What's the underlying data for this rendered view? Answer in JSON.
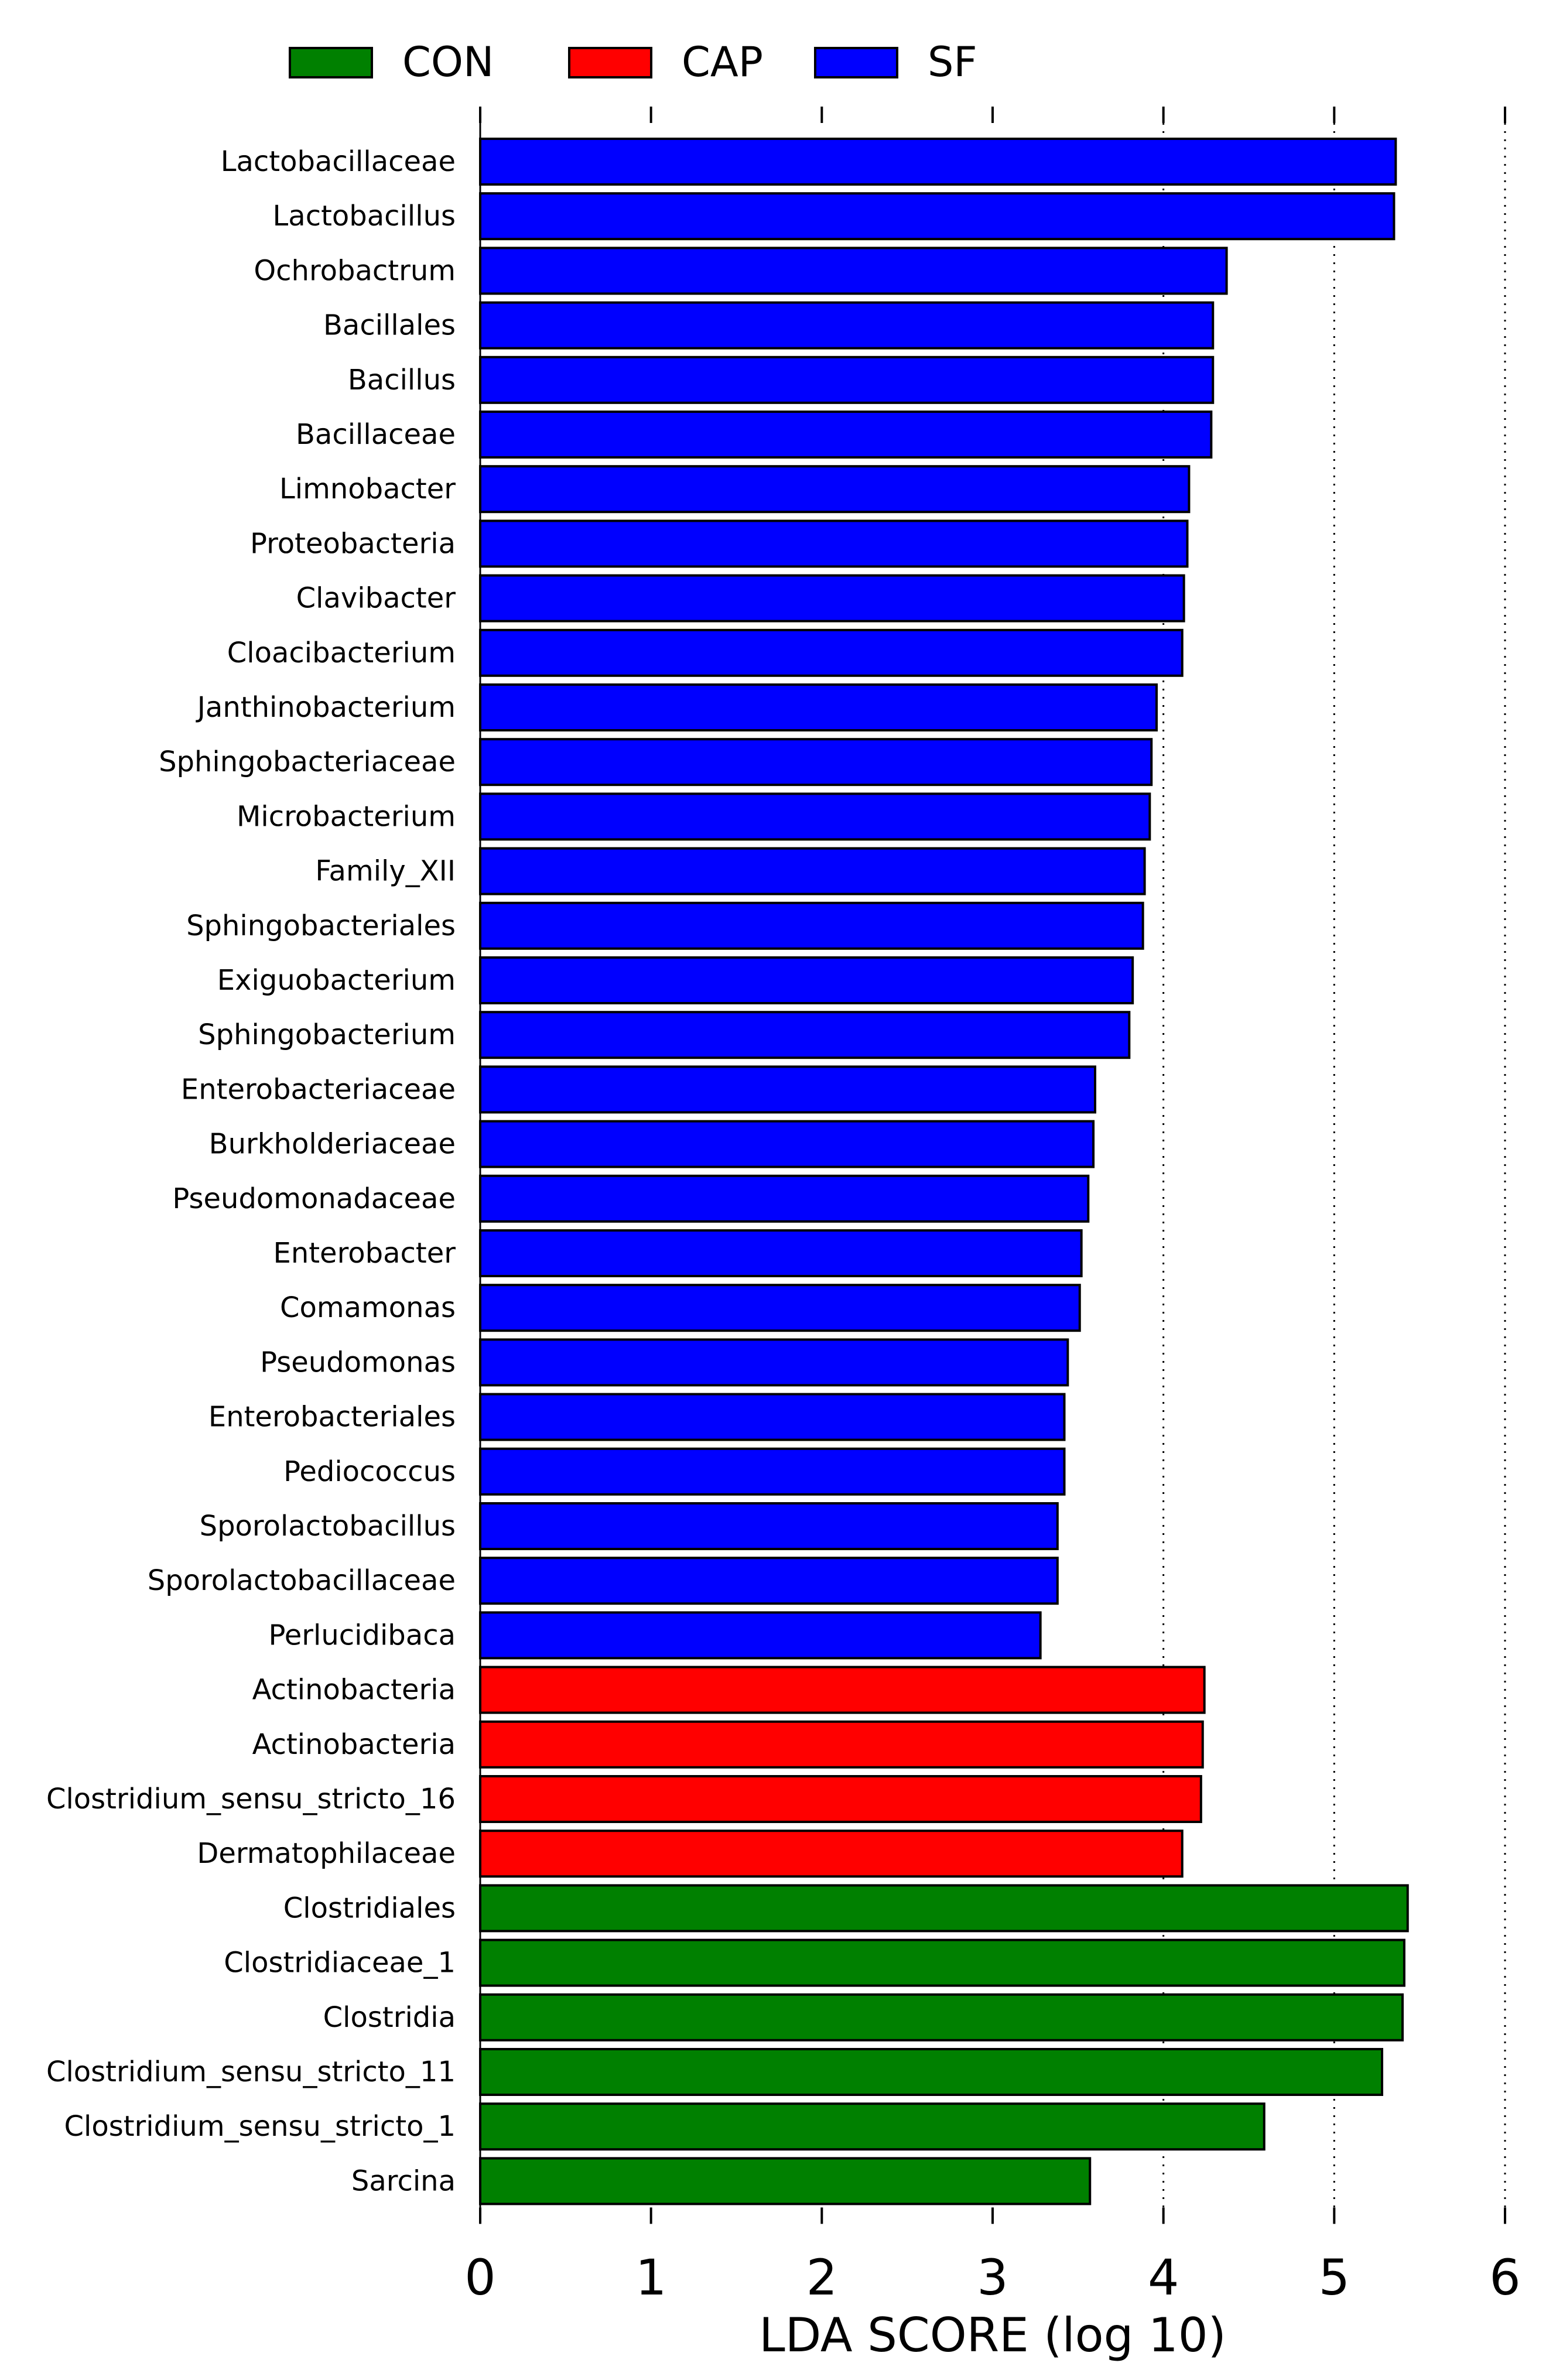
{
  "chart_data": {
    "type": "bar",
    "orientation": "horizontal",
    "title": "",
    "xlabel": "LDA SCORE (log 10)",
    "ylabel": "",
    "xlim": [
      0,
      6
    ],
    "xticks": [
      "0",
      "1",
      "2",
      "3",
      "4",
      "5",
      "6"
    ],
    "grid": "vertical dotted lines at 4, 5, 6",
    "legend_position": "top",
    "legend": [
      {
        "name": "CON",
        "color": "#008000"
      },
      {
        "name": "CAP",
        "color": "#ff0000"
      },
      {
        "name": "SF",
        "color": "#0000ff"
      }
    ],
    "categories": [
      "Lactobacillaceae",
      "Lactobacillus",
      "Ochrobactrum",
      "Bacillales",
      "Bacillus",
      "Bacillaceae",
      "Limnobacter",
      "Proteobacteria",
      "Clavibacter",
      "Cloacibacterium",
      "Janthinobacterium",
      "Sphingobacteriaceae",
      "Microbacterium",
      "Family_XII",
      "Sphingobacteriales",
      "Exiguobacterium",
      "Sphingobacterium",
      "Enterobacteriaceae",
      "Burkholderiaceae",
      "Pseudomonadaceae",
      "Enterobacter",
      "Comamonas",
      "Pseudomonas",
      "Enterobacteriales",
      "Pediococcus",
      "Sporolactobacillus",
      "Sporolactobacillaceae",
      "Perlucidibaca",
      "Actinobacteria",
      "Actinobacteria",
      "Clostridium_sensu_stricto_16",
      "Dermatophilaceae",
      "Clostridiales",
      "Clostridiaceae_1",
      "Clostridia",
      "Clostridium_sensu_stricto_11",
      "Clostridium_sensu_stricto_1",
      "Sarcina"
    ],
    "values": [
      5.36,
      5.35,
      4.37,
      4.29,
      4.29,
      4.28,
      4.15,
      4.14,
      4.12,
      4.11,
      3.96,
      3.93,
      3.92,
      3.89,
      3.88,
      3.82,
      3.8,
      3.6,
      3.59,
      3.56,
      3.52,
      3.51,
      3.44,
      3.42,
      3.42,
      3.38,
      3.38,
      3.28,
      4.24,
      4.23,
      4.22,
      4.11,
      5.43,
      5.41,
      5.4,
      5.28,
      4.59,
      3.57
    ],
    "groups": [
      "SF",
      "SF",
      "SF",
      "SF",
      "SF",
      "SF",
      "SF",
      "SF",
      "SF",
      "SF",
      "SF",
      "SF",
      "SF",
      "SF",
      "SF",
      "SF",
      "SF",
      "SF",
      "SF",
      "SF",
      "SF",
      "SF",
      "SF",
      "SF",
      "SF",
      "SF",
      "SF",
      "SF",
      "CAP",
      "CAP",
      "CAP",
      "CAP",
      "CON",
      "CON",
      "CON",
      "CON",
      "CON",
      "CON"
    ]
  }
}
